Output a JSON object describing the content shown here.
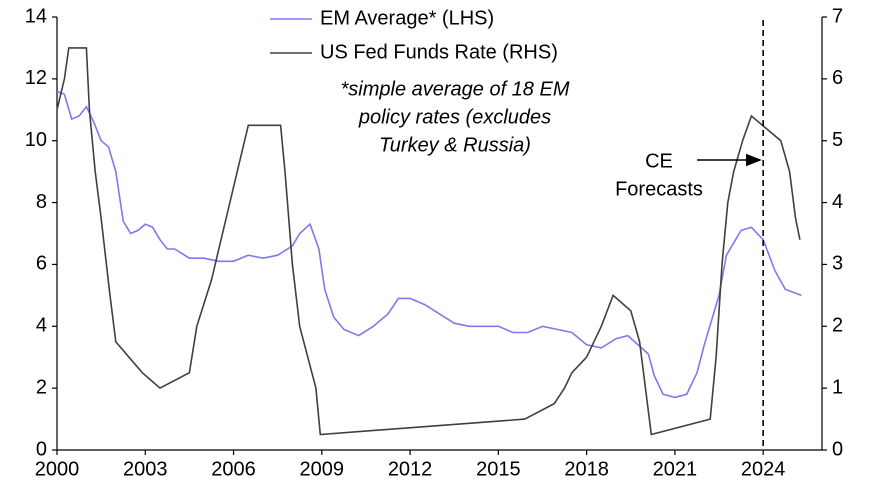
{
  "chart_data": {
    "type": "line",
    "note": [
      "*simple average of 18 EM",
      "policy rates (excludes",
      "Turkey & Russia)"
    ],
    "annotation": {
      "x": 2024,
      "text": [
        "CE",
        "Forecasts"
      ]
    },
    "xlim": [
      2000,
      2026
    ],
    "xticks": [
      2000,
      2003,
      2006,
      2009,
      2012,
      2015,
      2018,
      2021,
      2024
    ],
    "ylim": [
      0,
      14
    ],
    "yticks": [
      0,
      2,
      4,
      6,
      8,
      10,
      12,
      14
    ],
    "y2lim": [
      0,
      7
    ],
    "y2ticks": [
      0,
      1,
      2,
      3,
      4,
      5,
      6,
      7
    ],
    "grid": false,
    "legend": "top",
    "series": [
      {
        "name": "EM Average* (LHS)",
        "color": "#7b7bef",
        "x": [
          2000,
          2000.25,
          2000.5,
          2000.75,
          2001,
          2001.25,
          2001.5,
          2001.75,
          2002,
          2002.25,
          2002.5,
          2002.75,
          2003,
          2003.25,
          2003.5,
          2003.75,
          2004,
          2004.5,
          2005,
          2005.5,
          2006,
          2006.5,
          2007,
          2007.5,
          2008,
          2008.25,
          2008.6,
          2008.9,
          2009.1,
          2009.4,
          2009.75,
          2010.25,
          2010.75,
          2011.25,
          2011.6,
          2012,
          2012.5,
          2013,
          2013.5,
          2014,
          2015,
          2015.5,
          2016,
          2016.5,
          2017,
          2017.5,
          2018,
          2018.5,
          2019,
          2019.4,
          2019.75,
          2020.1,
          2020.3,
          2020.6,
          2021,
          2021.4,
          2021.75,
          2022,
          2022.5,
          2022.75,
          2023.25,
          2023.6,
          2024,
          2024.4,
          2024.75,
          2025.3
        ],
        "values": [
          11.6,
          11.5,
          10.7,
          10.8,
          11.1,
          10.6,
          10.0,
          9.8,
          9.0,
          7.4,
          7.0,
          7.1,
          7.3,
          7.2,
          6.8,
          6.5,
          6.5,
          6.2,
          6.2,
          6.1,
          6.1,
          6.3,
          6.2,
          6.3,
          6.6,
          7.0,
          7.3,
          6.5,
          5.2,
          4.3,
          3.9,
          3.7,
          4.0,
          4.4,
          4.9,
          4.9,
          4.7,
          4.4,
          4.1,
          4.0,
          4.0,
          3.8,
          3.8,
          4.0,
          3.9,
          3.8,
          3.4,
          3.3,
          3.6,
          3.7,
          3.4,
          3.1,
          2.4,
          1.8,
          1.7,
          1.8,
          2.5,
          3.4,
          5.0,
          6.3,
          7.1,
          7.2,
          6.8,
          5.8,
          5.2,
          5.0
        ]
      },
      {
        "name": "US Fed Funds Rate (RHS)",
        "color": "#404040",
        "axis": "y2",
        "x": [
          2000,
          2000.25,
          2000.4,
          2001,
          2001.1,
          2001.3,
          2001.5,
          2001.8,
          2002,
          2002.9,
          2003.5,
          2004.5,
          2004.75,
          2005.25,
          2005.75,
          2006.25,
          2006.5,
          2007.6,
          2007.75,
          2008,
          2008.25,
          2008.8,
          2008.95,
          2015.9,
          2016.9,
          2017.25,
          2017.5,
          2018,
          2018.5,
          2018.9,
          2019.5,
          2019.8,
          2020.2,
          2022.2,
          2022.4,
          2022.6,
          2022.8,
          2023,
          2023.3,
          2023.6,
          2024.6,
          2024.9,
          2025.1,
          2025.25
        ],
        "values": [
          5.5,
          6.0,
          6.5,
          6.5,
          5.5,
          4.5,
          3.75,
          2.5,
          1.75,
          1.25,
          1.0,
          1.25,
          2.0,
          2.75,
          3.75,
          4.75,
          5.25,
          5.25,
          4.5,
          3.0,
          2.0,
          1.0,
          0.25,
          0.5,
          0.75,
          1.0,
          1.25,
          1.5,
          2.0,
          2.5,
          2.25,
          1.75,
          0.25,
          0.5,
          1.5,
          3.0,
          4.0,
          4.5,
          5.0,
          5.4,
          5.0,
          4.5,
          3.75,
          3.4
        ]
      }
    ]
  }
}
